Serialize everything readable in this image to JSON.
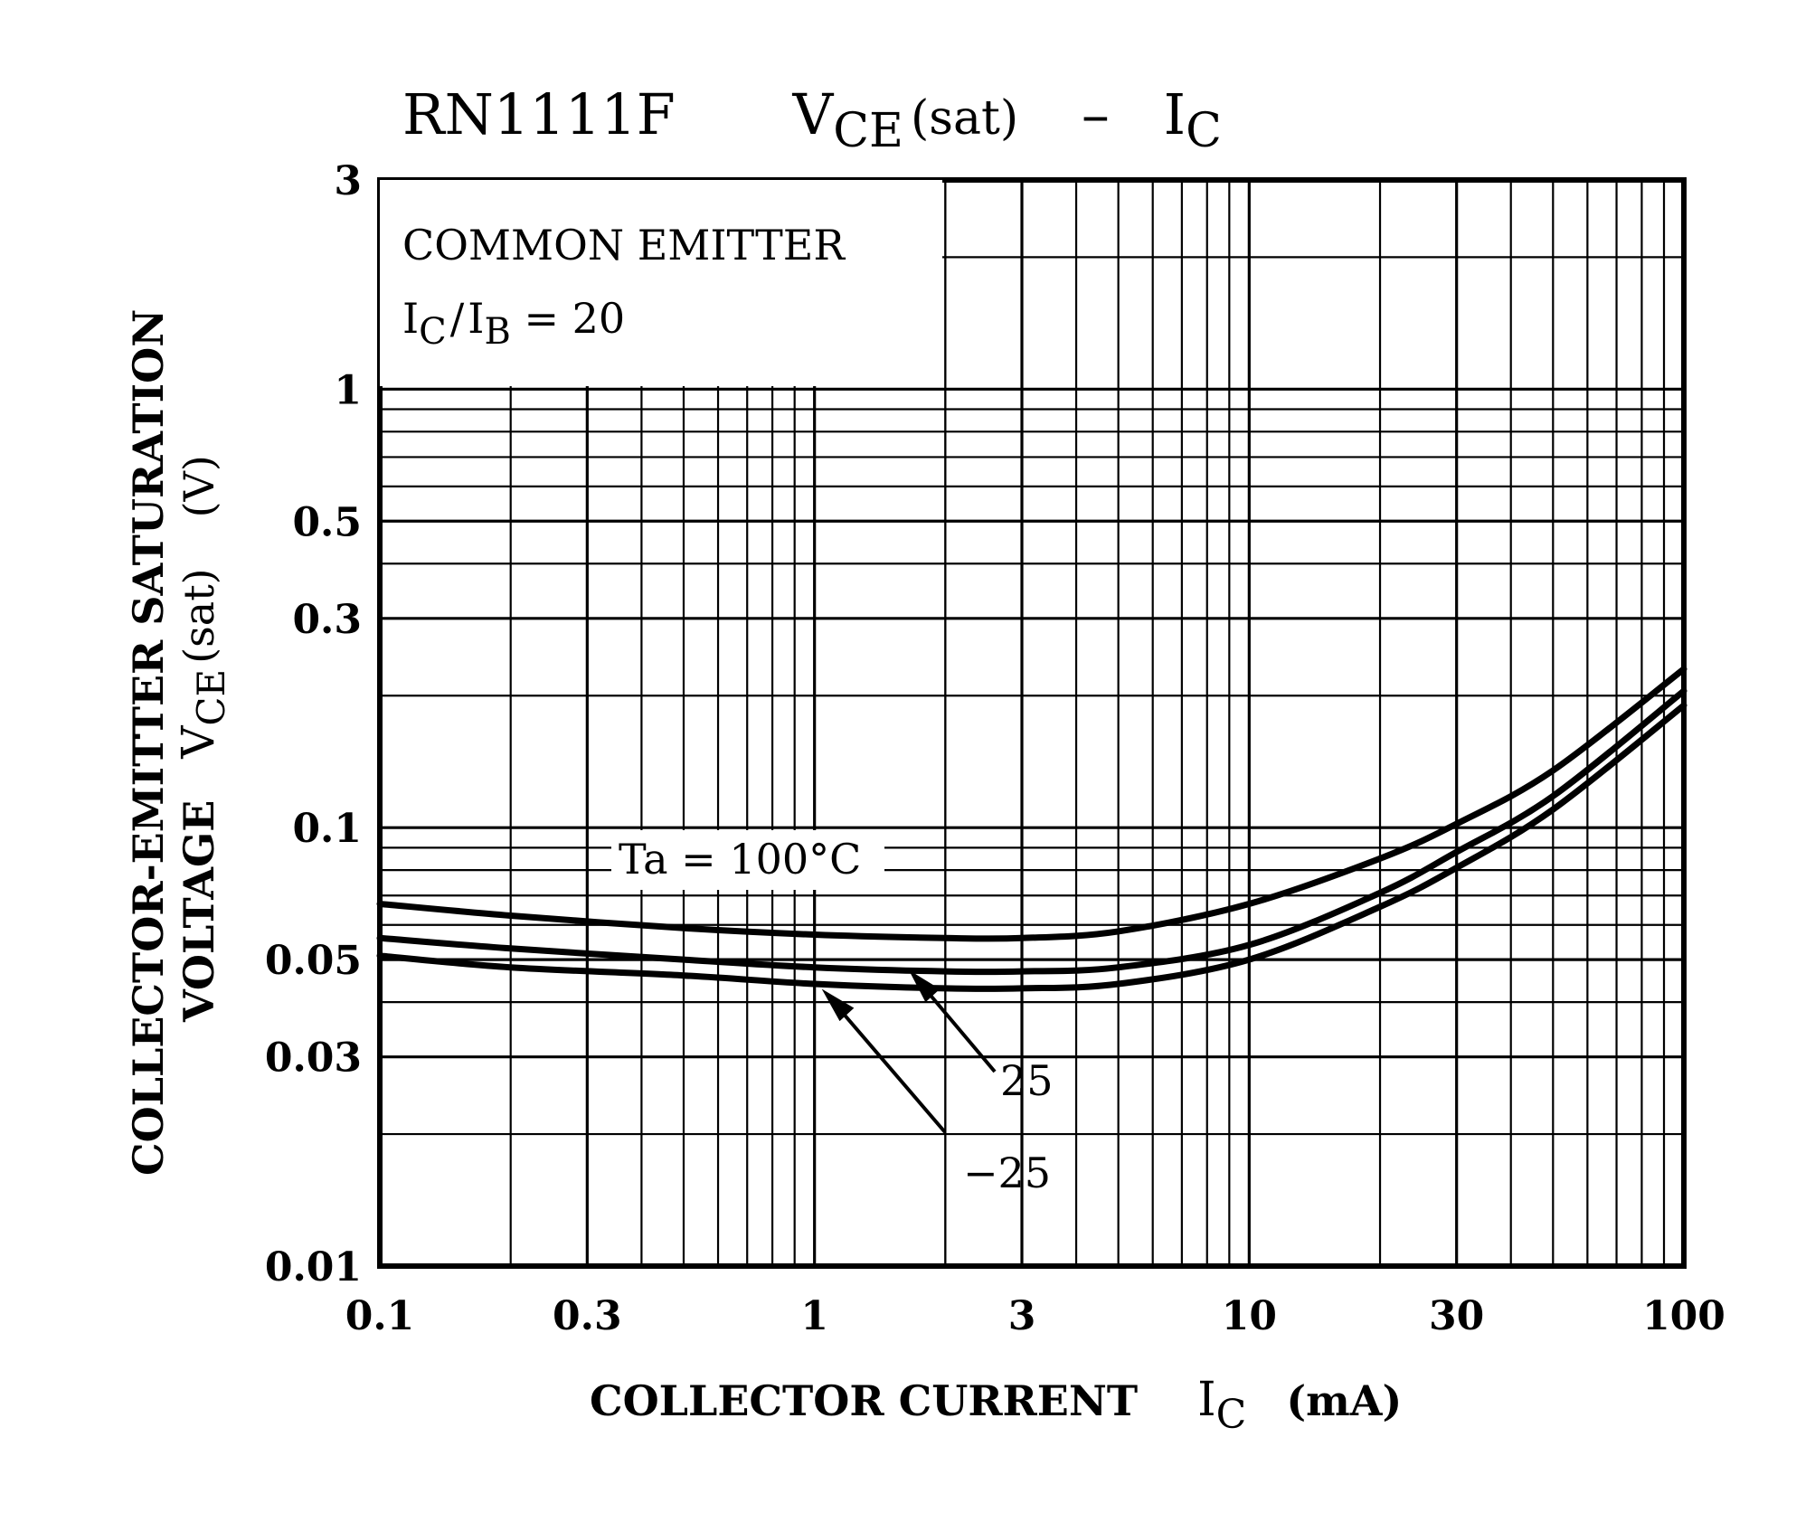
{
  "chart_data": {
    "type": "line",
    "scale": {
      "x": "log",
      "y": "log"
    },
    "title": {
      "part_number": "RN1111F",
      "y_symbol": "V",
      "y_sub": "CE",
      "y_suffix": "(sat)",
      "dash": "–",
      "x_symbol": "I",
      "x_sub": "C"
    },
    "conditions": {
      "line1": "COMMON  EMITTER",
      "ic_symbol": "I",
      "ic_sub": "C",
      "slash": "/",
      "ib_symbol": "I",
      "ib_sub": "B",
      "ratio_text": " = 20"
    },
    "xlim": [
      0.1,
      100
    ],
    "ylim": [
      0.01,
      3
    ],
    "x_ticks": [
      {
        "value": 0.1,
        "label": "0.1"
      },
      {
        "value": 0.3,
        "label": "0.3"
      },
      {
        "value": 1,
        "label": "1"
      },
      {
        "value": 3,
        "label": "3"
      },
      {
        "value": 10,
        "label": "10"
      },
      {
        "value": 30,
        "label": "30"
      },
      {
        "value": 100,
        "label": "100"
      }
    ],
    "y_ticks": [
      {
        "value": 0.01,
        "label": "0.01"
      },
      {
        "value": 0.03,
        "label": "0.03"
      },
      {
        "value": 0.05,
        "label": "0.05"
      },
      {
        "value": 0.1,
        "label": "0.1"
      },
      {
        "value": 0.3,
        "label": "0.3"
      },
      {
        "value": 0.5,
        "label": "0.5"
      },
      {
        "value": 1,
        "label": "1"
      },
      {
        "value": 3,
        "label": "3"
      }
    ],
    "xlabel": {
      "text": "COLLECTOR CURRENT",
      "symbol": "I",
      "sub": "C",
      "unit": "(mA)"
    },
    "ylabel": {
      "line1": "COLLECTOR-EMITTER SATURATION",
      "line2_text": "VOLTAGE",
      "symbol": "V",
      "sub": "CE",
      "suffix": "(sat)",
      "unit": "(V)"
    },
    "series": [
      {
        "name": "Ta = 100°C",
        "label": "Ta = 100°C",
        "x": [
          0.1,
          0.2,
          0.5,
          1,
          2,
          3,
          5,
          10,
          20,
          30,
          50,
          100
        ],
        "y": [
          0.067,
          0.063,
          0.059,
          0.057,
          0.056,
          0.056,
          0.058,
          0.067,
          0.085,
          0.102,
          0.135,
          0.23
        ]
      },
      {
        "name": "Ta = 25°C",
        "label": "25",
        "x": [
          0.1,
          0.2,
          0.5,
          1,
          2,
          3,
          5,
          10,
          20,
          30,
          50,
          100
        ],
        "y": [
          0.056,
          0.053,
          0.05,
          0.048,
          0.047,
          0.047,
          0.048,
          0.054,
          0.071,
          0.088,
          0.118,
          0.205
        ]
      },
      {
        "name": "Ta = -25°C",
        "label": "−25",
        "x": [
          0.1,
          0.2,
          0.5,
          1,
          2,
          3,
          5,
          10,
          20,
          30,
          50,
          100
        ],
        "y": [
          0.051,
          0.048,
          0.046,
          0.044,
          0.043,
          0.043,
          0.044,
          0.05,
          0.066,
          0.081,
          0.11,
          0.19
        ]
      }
    ]
  }
}
